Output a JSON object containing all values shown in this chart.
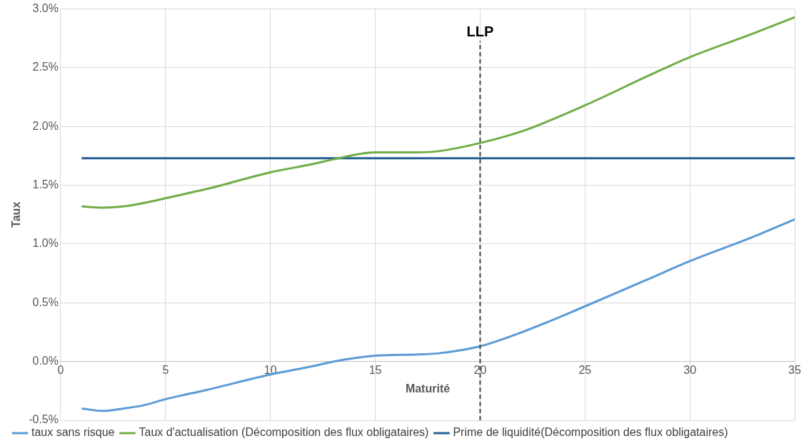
{
  "chart_data": {
    "type": "line",
    "xlabel": "Maturité",
    "ylabel": "Taux",
    "xlim": [
      0,
      35
    ],
    "xticks": [
      0,
      5,
      10,
      15,
      20,
      25,
      30,
      35
    ],
    "ylim": [
      -0.5,
      3.0
    ],
    "yticks": [
      {
        "value": -0.5,
        "label": "-0.5%"
      },
      {
        "value": 0,
        "label": "0.0%"
      },
      {
        "value": 0.5,
        "label": "0.5%"
      },
      {
        "value": 1,
        "label": "1.0%"
      },
      {
        "value": 1.5,
        "label": "1.5%"
      },
      {
        "value": 2,
        "label": "2.0%"
      },
      {
        "value": 2.5,
        "label": "2.5%"
      },
      {
        "value": 3,
        "label": "3.0%"
      }
    ],
    "grid": true,
    "legend": "bottom",
    "marker": "none",
    "line_style": "solid",
    "series": [
      {
        "name": "taux sans risque",
        "color": "#5b9bd5",
        "x": [
          1,
          2,
          3,
          4,
          5,
          7,
          10,
          12,
          13,
          15,
          17,
          18,
          20,
          22,
          25,
          28,
          30,
          33,
          35
        ],
        "values": [
          -0.4,
          -0.42,
          -0.4,
          -0.37,
          -0.32,
          -0.24,
          -0.11,
          -0.04,
          0.0,
          0.05,
          0.06,
          0.07,
          0.13,
          0.25,
          0.47,
          0.7,
          0.855,
          1.06,
          1.21
        ]
      },
      {
        "name": "Taux d'actualisation (Décomposition des flux obligataires)",
        "color": "#70ad47",
        "x": [
          1,
          2,
          3,
          4,
          5,
          7,
          10,
          12,
          13,
          15,
          17,
          18,
          20,
          22,
          25,
          28,
          30,
          33,
          35
        ],
        "values": [
          1.32,
          1.31,
          1.32,
          1.35,
          1.39,
          1.47,
          1.61,
          1.68,
          1.72,
          1.78,
          1.78,
          1.79,
          1.86,
          1.96,
          2.18,
          2.43,
          2.59,
          2.79,
          2.93
        ]
      },
      {
        "name": "Prime de liquidité(Décomposition des flux obligataires)",
        "color": "#255e91",
        "x": [
          1,
          35
        ],
        "values": [
          1.73,
          1.73
        ]
      }
    ],
    "ref_lines": [
      {
        "axis": "x",
        "value": 20,
        "label": "LLP",
        "color": "#404040",
        "line_style": "dashed"
      }
    ]
  }
}
